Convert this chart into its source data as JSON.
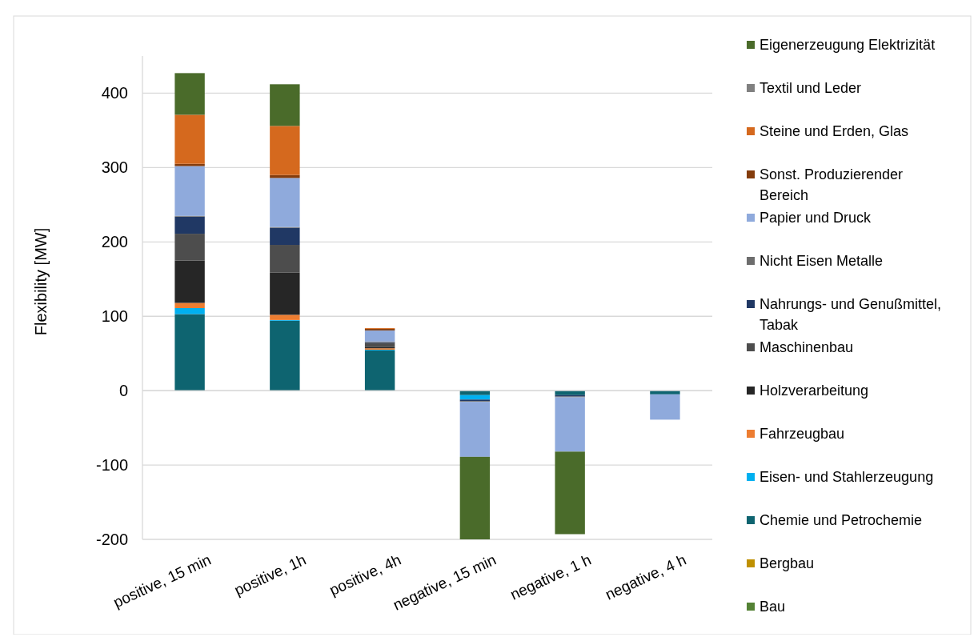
{
  "chart_data": {
    "type": "bar",
    "stacked": true,
    "ylabel": "Flexibility [MW]",
    "categories": [
      "positive, 15 min",
      "positive, 1h",
      "positive, 4h",
      "negative, 15 min",
      "negative, 1 h",
      "negative, 4 h"
    ],
    "ylim": [
      -200,
      450
    ],
    "yticks": [
      -200,
      -100,
      0,
      100,
      200,
      300,
      400
    ],
    "grid": "y",
    "legend": "right",
    "series": [
      {
        "name": "Bau",
        "color": "#548235",
        "values": [
          0,
          0,
          0,
          0,
          0,
          0
        ]
      },
      {
        "name": "Bergbau",
        "color": "#bf9000",
        "values": [
          0,
          0,
          0,
          0,
          0,
          0
        ]
      },
      {
        "name": "Chemie und Petrochemie",
        "color": "#0e6470",
        "values": [
          103,
          94,
          54,
          -6,
          -6,
          -5
        ]
      },
      {
        "name": "Eisen- und Stahlerzeugung",
        "color": "#00b0f0",
        "values": [
          8,
          1,
          1,
          -6,
          0,
          0
        ]
      },
      {
        "name": "Fahrzeugbau",
        "color": "#ed7d31",
        "values": [
          7,
          7,
          2,
          0,
          0,
          0
        ]
      },
      {
        "name": "Holzverarbeitung",
        "color": "#262626",
        "values": [
          57,
          57,
          2,
          0,
          0,
          0
        ]
      },
      {
        "name": "Maschinenbau",
        "color": "#4d4d4d",
        "values": [
          36,
          37,
          5,
          0,
          0,
          0
        ]
      },
      {
        "name": "Nahrungs- und Genußmittel, Tabak",
        "color": "#203864",
        "values": [
          23,
          23,
          1,
          -2,
          -2,
          0
        ]
      },
      {
        "name": "Nicht Eisen Metalle",
        "color": "#6d6d6d",
        "values": [
          1,
          1,
          1,
          -1,
          -1,
          0
        ]
      },
      {
        "name": "Papier und Druck",
        "color": "#8faadc",
        "values": [
          67,
          66,
          15,
          -74,
          -73,
          -34
        ]
      },
      {
        "name": "Sonst. Produzierender Bereich",
        "color": "#843c0c",
        "values": [
          3,
          4,
          2,
          0,
          0,
          0
        ]
      },
      {
        "name": "Steine und Erden, Glas",
        "color": "#d5691e",
        "values": [
          66,
          66,
          1,
          0,
          0,
          0
        ]
      },
      {
        "name": "Textil und Leder",
        "color": "#808080",
        "values": [
          0,
          0,
          0,
          0,
          0,
          0
        ]
      },
      {
        "name": "Eigenerzeugung Elektrizität",
        "color": "#4a6b2a",
        "values": [
          56,
          56,
          0,
          -111,
          -111,
          0
        ]
      }
    ]
  }
}
